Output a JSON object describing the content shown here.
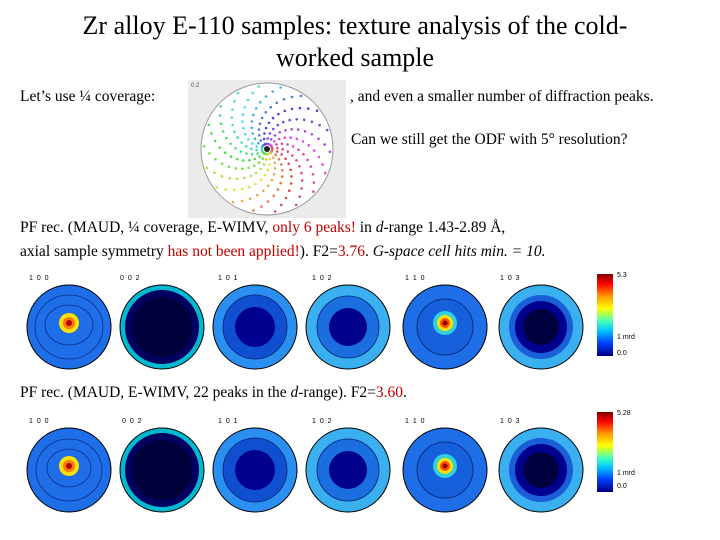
{
  "title": {
    "line1": "Zr alloy E-110 samples: texture analysis of the cold-",
    "line2": "worked sample"
  },
  "intro": {
    "left": "Let’s use ¼ coverage:",
    "right": ", and even a smaller number of diffraction peaks.",
    "question": "Can we still get the ODF with 5° resolution?"
  },
  "section1": {
    "p1": "PF rec. (MAUD, ¼ coverage,  E-WIMV, ",
    "p2": "only 6 peaks!",
    "p3": " in ",
    "p4": "d",
    "p5": "-range 1.43-2.89 Å,",
    "p6": "axial sample symmetry ",
    "p7": "has not been applied!",
    "p8": "). F2=",
    "p9": "3.76",
    "p10": ". ",
    "p11": "G-space cell hits min. = 10.",
    "labels": [
      "1 0 0",
      "0 0 2",
      "1 0 1",
      "1 0 2",
      "1 1 0",
      "1 0 3"
    ],
    "scale": {
      "max": "5.3",
      "mid": "1 mrd",
      "min": "0.0"
    }
  },
  "section2": {
    "p1": "PF rec. (MAUD, E-WIMV, 22 peaks in the ",
    "p2": "d",
    "p3": "-range). F2=",
    "p4": "3.60",
    "p5": ".",
    "labels": [
      "1 0 0",
      "0 0 2",
      "1 0 1",
      "1 0 2",
      "1 1 0",
      "1 0 3"
    ],
    "scale": {
      "max": "5.28",
      "mid": "1 mrd",
      "min": "0.0"
    }
  },
  "colors": {
    "accent_red": "#c00000",
    "jet_dark": "#00008f",
    "jet_blue": "#1e6ee8",
    "jet_cyan": "#3ab0f0"
  },
  "inset_corner": "0.2"
}
